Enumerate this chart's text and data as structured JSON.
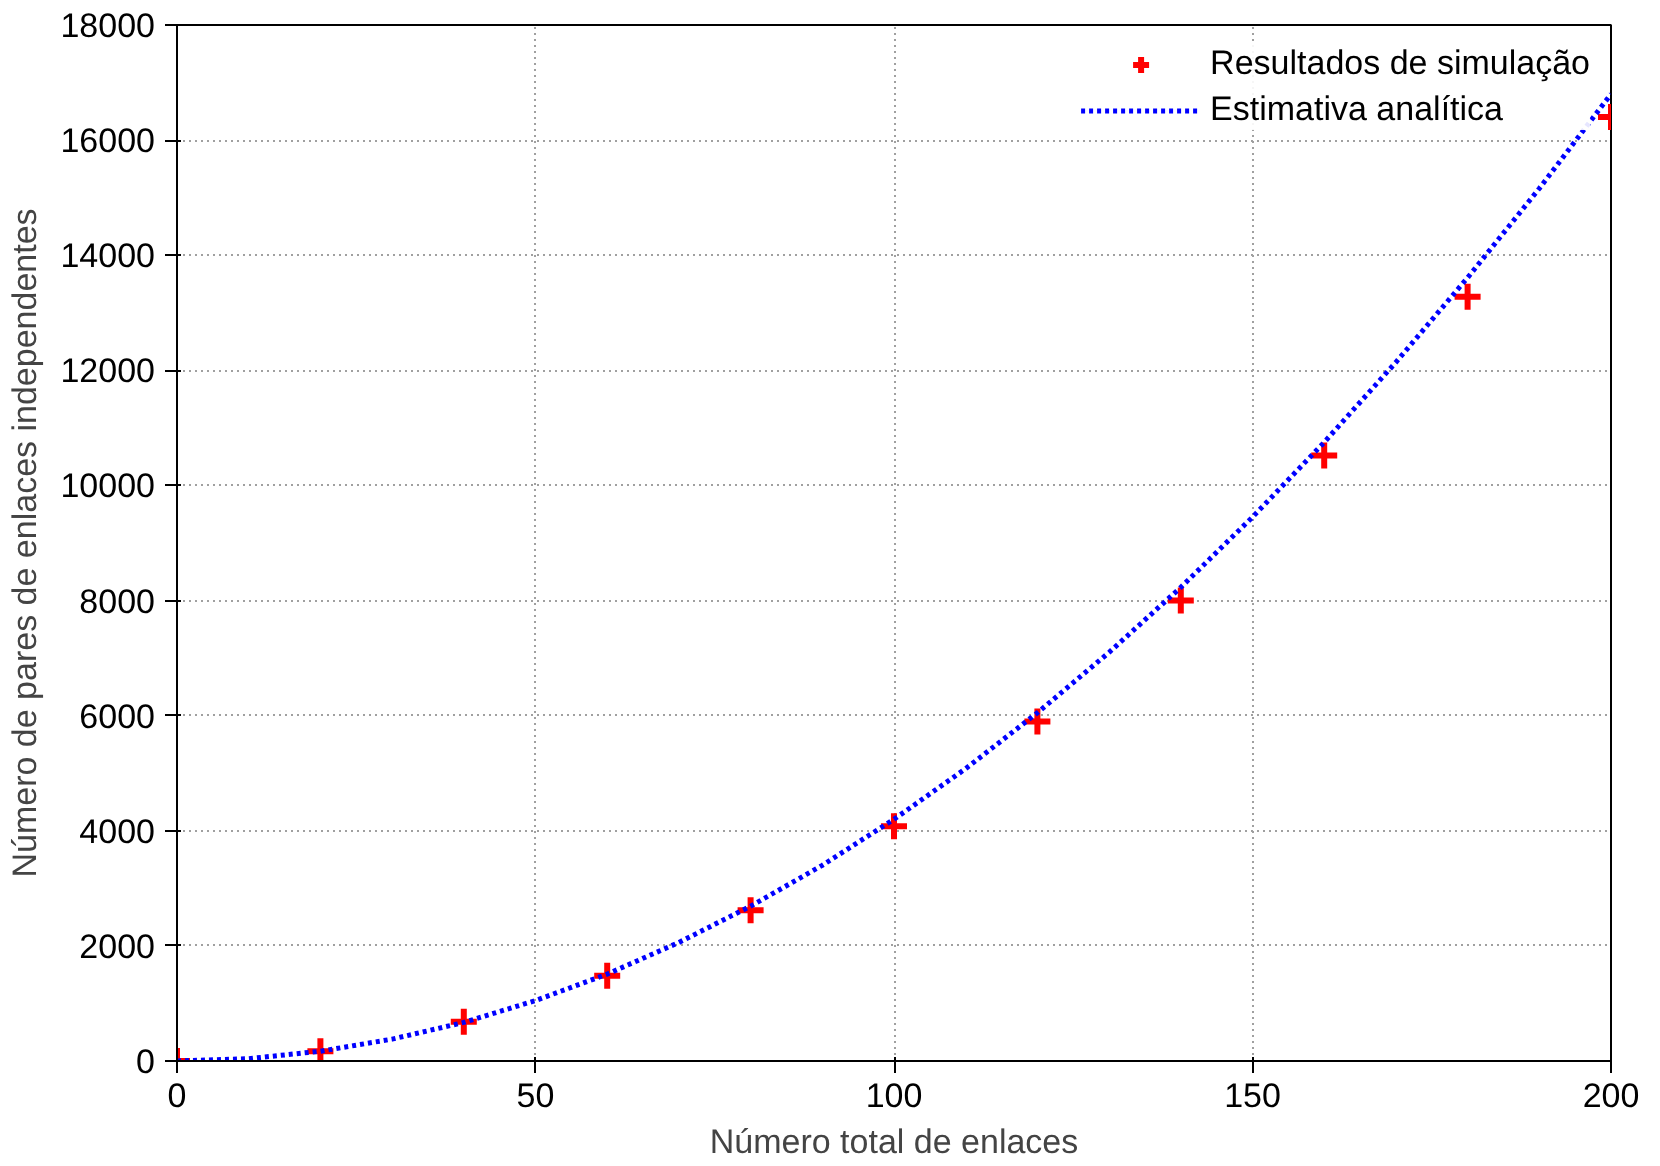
{
  "chart_data": {
    "type": "scatter",
    "xlabel": "Número total de enlaces",
    "ylabel": "Número de pares de enlaces independentes",
    "xlim": [
      0,
      200
    ],
    "ylim": [
      0,
      18000
    ],
    "xticks": [
      0,
      50,
      100,
      150,
      200
    ],
    "yticks": [
      0,
      2000,
      4000,
      6000,
      8000,
      10000,
      12000,
      14000,
      16000,
      18000
    ],
    "grid": true,
    "legend": "top right",
    "series": [
      {
        "name": "Resultados de simulação",
        "marker": "cross",
        "color": "#ff0000",
        "x": [
          0,
          20,
          40,
          60,
          80,
          100,
          120,
          140,
          160,
          180,
          200
        ],
        "values": [
          0,
          170,
          680,
          1480,
          2620,
          4080,
          5900,
          8000,
          10520,
          13280,
          16400
        ]
      },
      {
        "name": "Estimativa analítica",
        "type": "line",
        "line_style": "dotted",
        "color": "#0000ff",
        "x": [
          0,
          10,
          20,
          30,
          40,
          50,
          60,
          70,
          80,
          90,
          100,
          110,
          120,
          130,
          140,
          150,
          160,
          170,
          180,
          190,
          200
        ],
        "values": [
          0,
          40,
          170,
          380,
          670,
          1050,
          1510,
          2060,
          2690,
          3400,
          4200,
          5080,
          6050,
          7100,
          8230,
          9450,
          10750,
          12140,
          13610,
          15160,
          16800
        ]
      }
    ]
  }
}
